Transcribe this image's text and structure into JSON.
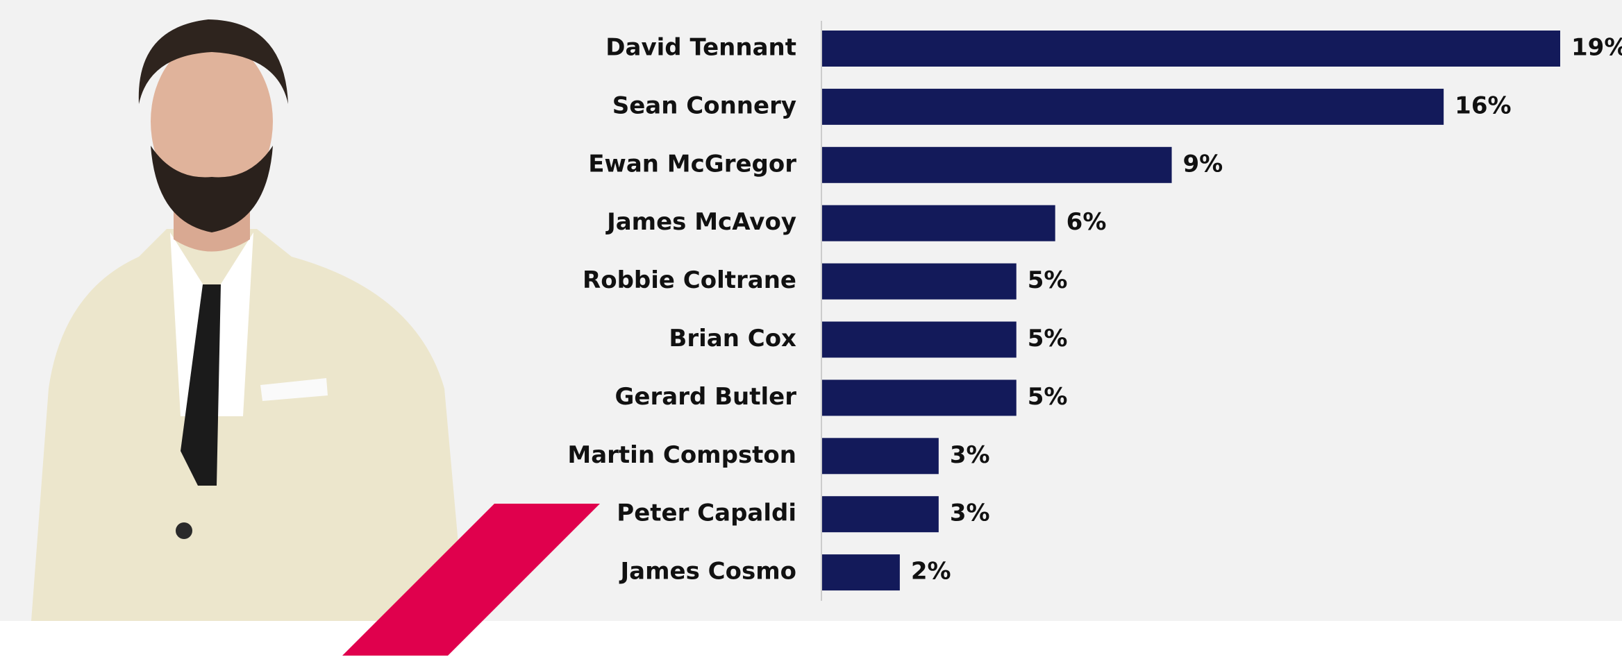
{
  "chart_data": {
    "type": "bar",
    "orientation": "horizontal",
    "categories": [
      "David Tennant",
      "Sean Connery",
      "Ewan McGregor",
      "James McAvoy",
      "Robbie Coltrane",
      "Brian Cox",
      "Gerard Butler",
      "Martin Compston",
      "Peter Capaldi",
      "James Cosmo"
    ],
    "values": [
      19,
      16,
      9,
      6,
      5,
      5,
      5,
      3,
      3,
      2
    ],
    "value_labels": [
      "19%",
      "16%",
      "9%",
      "6%",
      "5%",
      "5%",
      "5%",
      "3%",
      "3%",
      "2%"
    ],
    "color": "#131a5a",
    "xlim": [
      0,
      19
    ]
  }
}
